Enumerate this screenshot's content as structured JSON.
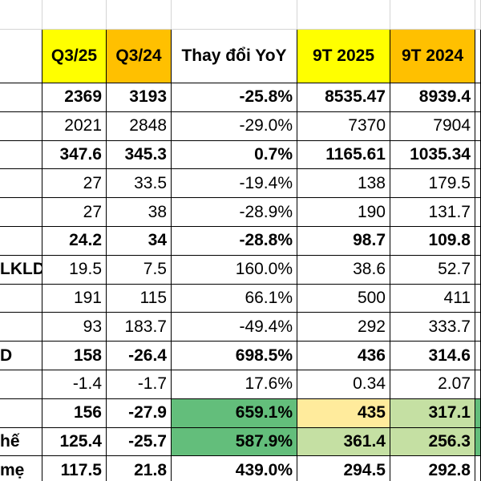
{
  "colors": {
    "yellow_header": "#ffff00",
    "orange_header": "#ffc000",
    "green_strong": "#63be7b",
    "green_light": "#c5e0a3",
    "yellow_light": "#ffeb9c"
  },
  "table": {
    "headers": [
      "",
      "Q3/25",
      "Q3/24",
      "Thay đổi YoY",
      "9T 2025",
      "9T 2024",
      ""
    ],
    "rows": [
      {
        "label": "",
        "bold": true,
        "cells": [
          "2369",
          "3193",
          "-25.8%",
          "8535.47",
          "8939.4",
          ""
        ]
      },
      {
        "label": "",
        "bold": false,
        "cells": [
          "2021",
          "2848",
          "-29.0%",
          "7370",
          "7904",
          ""
        ]
      },
      {
        "label": "",
        "bold": true,
        "cells": [
          "347.6",
          "345.3",
          "0.7%",
          "1165.61",
          "1035.34",
          ""
        ]
      },
      {
        "label": "",
        "bold": false,
        "cells": [
          "27",
          "33.5",
          "-19.4%",
          "138",
          "179.5",
          ""
        ]
      },
      {
        "label": "",
        "bold": false,
        "cells": [
          "27",
          "38",
          "-28.9%",
          "190",
          "131.7",
          ""
        ]
      },
      {
        "label": "",
        "bold": true,
        "cells": [
          "24.2",
          "34",
          "-28.8%",
          "98.7",
          "109.8",
          ""
        ]
      },
      {
        "label": "LKLD",
        "bold": false,
        "cells": [
          "19.5",
          "7.5",
          "160.0%",
          "38.6",
          "52.7",
          ""
        ]
      },
      {
        "label": "",
        "bold": false,
        "cells": [
          "191",
          "115",
          "66.1%",
          "500",
          "411",
          ""
        ]
      },
      {
        "label": "",
        "bold": false,
        "cells": [
          "93",
          "183.7",
          "-49.4%",
          "292",
          "333.7",
          ""
        ]
      },
      {
        "label": "D",
        "bold": true,
        "cells": [
          "158",
          "-26.4",
          "698.5%",
          "436",
          "314.6",
          ""
        ]
      },
      {
        "label": "",
        "bold": false,
        "cells": [
          "-1.4",
          "-1.7",
          "17.6%",
          "0.34",
          "2.07",
          ""
        ]
      },
      {
        "label": "",
        "bold": true,
        "cells": [
          "156",
          "-27.9",
          "659.1%",
          "435",
          "317.1",
          ""
        ]
      },
      {
        "label": "hế",
        "bold": true,
        "cells": [
          "125.4",
          "-25.7",
          "587.9%",
          "361.4",
          "256.3",
          ""
        ]
      },
      {
        "label": "mẹ",
        "bold": true,
        "cells": [
          "117.5",
          "21.8",
          "439.0%",
          "294.5",
          "292.8",
          ""
        ]
      }
    ]
  }
}
